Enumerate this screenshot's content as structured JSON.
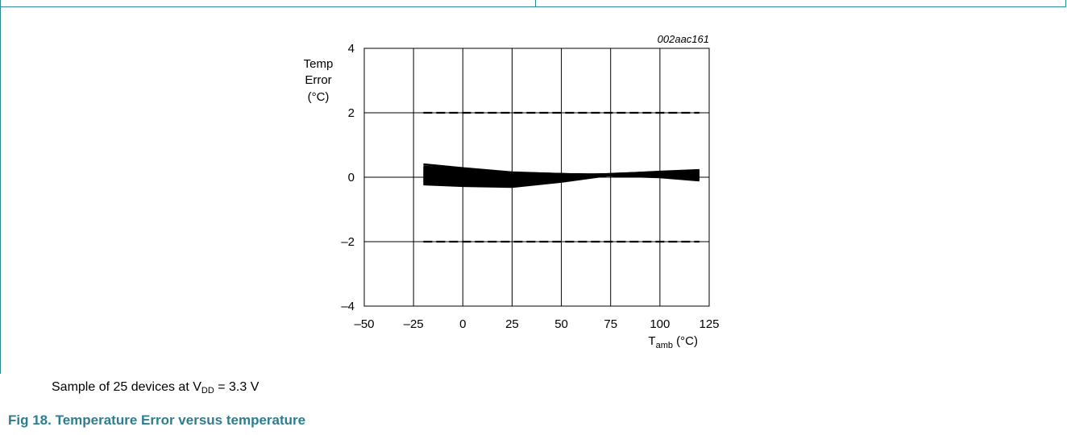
{
  "figure": {
    "code": "002aac161",
    "caption_prefix": "Sample of 25 devices at V",
    "caption_sub": "DD",
    "caption_suffix": " = 3.3 V",
    "title": "Fig 18.  Temperature Error versus temperature"
  },
  "chart_data": {
    "type": "line",
    "ylabel_lines": [
      "Temp",
      "Error",
      "(°C)"
    ],
    "xlabel_main": "T",
    "xlabel_sub": "amb",
    "xlabel_unit": " (°C)",
    "xlim": [
      -50,
      125
    ],
    "ylim": [
      -4,
      4
    ],
    "x_ticks": [
      -50,
      -25,
      0,
      25,
      50,
      75,
      100,
      125
    ],
    "x_tick_labels": [
      "–50",
      "–25",
      "0",
      "25",
      "50",
      "75",
      "100",
      "125"
    ],
    "y_ticks": [
      -4,
      -2,
      0,
      2,
      4
    ],
    "y_tick_labels": [
      "–4",
      "–2",
      "0",
      "2",
      "4"
    ],
    "grid": true,
    "limit_lines": [
      {
        "y": 2.0,
        "x": [
          -20,
          120
        ],
        "style": "dashed"
      },
      {
        "y": -2.0,
        "x": [
          -20,
          120
        ],
        "style": "dashed"
      }
    ],
    "x": [
      -20,
      0,
      25,
      50,
      75,
      100,
      120
    ],
    "series": [
      {
        "values": [
          0.4,
          0.28,
          0.15,
          0.1,
          0.05,
          0.0,
          -0.1
        ]
      },
      {
        "values": [
          0.33,
          0.24,
          0.14,
          0.1,
          0.06,
          0.01,
          -0.08
        ]
      },
      {
        "values": [
          0.27,
          0.2,
          0.13,
          0.1,
          0.07,
          0.02,
          -0.05
        ]
      },
      {
        "values": [
          0.22,
          0.17,
          0.11,
          0.09,
          0.07,
          0.04,
          -0.02
        ]
      },
      {
        "values": [
          0.18,
          0.14,
          0.1,
          0.09,
          0.08,
          0.06,
          0.01
        ]
      },
      {
        "values": [
          0.14,
          0.11,
          0.08,
          0.08,
          0.08,
          0.08,
          0.04
        ]
      },
      {
        "values": [
          0.1,
          0.07,
          0.06,
          0.07,
          0.09,
          0.1,
          0.08
        ]
      },
      {
        "values": [
          0.06,
          0.04,
          0.04,
          0.06,
          0.09,
          0.11,
          0.11
        ]
      },
      {
        "values": [
          0.02,
          0.0,
          0.01,
          0.05,
          0.09,
          0.13,
          0.15
        ]
      },
      {
        "values": [
          -0.02,
          -0.04,
          -0.02,
          0.04,
          0.1,
          0.15,
          0.18
        ]
      },
      {
        "values": [
          -0.06,
          -0.08,
          -0.05,
          0.03,
          0.1,
          0.16,
          0.2
        ]
      },
      {
        "values": [
          -0.1,
          -0.12,
          -0.1,
          0.0,
          0.09,
          0.17,
          0.22
        ]
      },
      {
        "values": [
          -0.15,
          -0.18,
          -0.17,
          -0.05,
          0.08,
          0.15,
          0.18
        ]
      },
      {
        "values": [
          -0.2,
          -0.24,
          -0.25,
          -0.1,
          0.07,
          0.12,
          0.14
        ]
      },
      {
        "values": [
          -0.22,
          -0.27,
          -0.3,
          -0.14,
          0.07,
          0.1,
          0.1
        ]
      },
      {
        "values": [
          0.3,
          0.22,
          0.12,
          0.08,
          0.07,
          0.04,
          -0.04
        ]
      },
      {
        "values": [
          0.24,
          0.18,
          0.11,
          0.09,
          0.08,
          0.05,
          0.0
        ]
      },
      {
        "values": [
          0.12,
          0.08,
          0.05,
          0.06,
          0.08,
          0.09,
          0.06
        ]
      },
      {
        "values": [
          -0.04,
          -0.06,
          -0.04,
          0.03,
          0.09,
          0.14,
          0.16
        ]
      },
      {
        "values": [
          -0.12,
          -0.15,
          -0.14,
          -0.03,
          0.09,
          0.16,
          0.2
        ]
      },
      {
        "values": [
          0.0,
          -0.02,
          0.0,
          0.05,
          0.09,
          0.12,
          0.13
        ]
      },
      {
        "values": [
          0.16,
          0.12,
          0.09,
          0.08,
          0.08,
          0.07,
          0.03
        ]
      },
      {
        "values": [
          -0.08,
          -0.1,
          -0.07,
          0.02,
          0.09,
          0.15,
          0.19
        ]
      },
      {
        "values": [
          0.08,
          0.05,
          0.05,
          0.07,
          0.09,
          0.1,
          0.09
        ]
      },
      {
        "values": [
          -0.18,
          -0.21,
          -0.21,
          -0.08,
          0.08,
          0.13,
          0.16
        ]
      }
    ]
  }
}
